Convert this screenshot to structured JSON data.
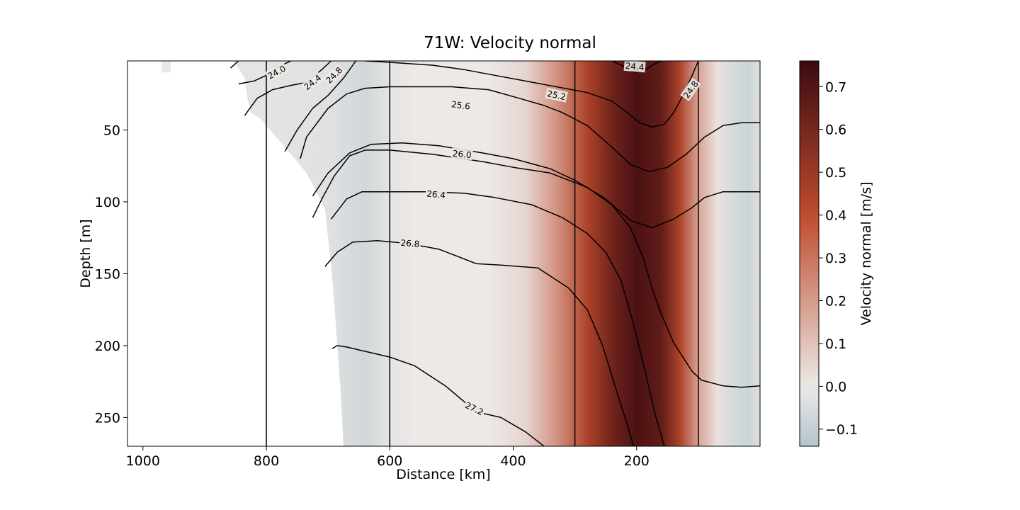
{
  "chart_data": {
    "type": "heatmap",
    "title": "71W: Velocity normal",
    "xlabel": "Distance [km]",
    "ylabel": "Depth [m]",
    "xlim": [
      1025,
      0
    ],
    "ylim": [
      2,
      270
    ],
    "x_inverted": true,
    "y_inverted": true,
    "x_ticks": [
      1000,
      800,
      600,
      400,
      200
    ],
    "y_ticks": [
      50,
      100,
      150,
      200,
      250
    ],
    "x_tick_labels": [
      "1000",
      "800",
      "600",
      "400",
      "200"
    ],
    "y_tick_labels": [
      "50",
      "100",
      "150",
      "200",
      "250"
    ],
    "grid": false,
    "colorbar": {
      "label": "Velocity normal [m/s]",
      "range": [
        -0.14,
        0.76
      ],
      "ticks": [
        -0.1,
        0.0,
        0.1,
        0.2,
        0.3,
        0.4,
        0.5,
        0.6,
        0.7
      ],
      "tick_labels": [
        "−0.1",
        "0.0",
        "0.1",
        "0.2",
        "0.3",
        "0.4",
        "0.5",
        "0.6",
        "0.7"
      ],
      "colors": {
        "negative": "#b3c5cc",
        "zero": "#ece9e7",
        "mid": "#bf4c2e",
        "max": "#3d0a10"
      }
    },
    "vertical_lines_km": [
      800,
      600,
      300,
      100
    ],
    "velocity_field": [
      {
        "km": 1025,
        "v": 0.0
      },
      {
        "km": 700,
        "v": -0.03
      },
      {
        "km": 640,
        "v": -0.07
      },
      {
        "km": 600,
        "v": -0.02
      },
      {
        "km": 560,
        "v": 0.0
      },
      {
        "km": 440,
        "v": 0.0
      },
      {
        "km": 380,
        "v": 0.05
      },
      {
        "km": 330,
        "v": 0.22
      },
      {
        "km": 280,
        "v": 0.45
      },
      {
        "km": 240,
        "v": 0.62
      },
      {
        "km": 200,
        "v": 0.72
      },
      {
        "km": 160,
        "v": 0.66
      },
      {
        "km": 130,
        "v": 0.45
      },
      {
        "km": 100,
        "v": 0.18
      },
      {
        "km": 70,
        "v": 0.02
      },
      {
        "km": 40,
        "v": -0.06
      },
      {
        "km": 20,
        "v": -0.08
      },
      {
        "km": 0,
        "v": -0.04
      }
    ],
    "contours": [
      {
        "label": "24.0",
        "points": [
          [
            858,
            7
          ],
          [
            845,
            2
          ]
        ]
      },
      {
        "label": "24.0",
        "points": [
          [
            845,
            18
          ],
          [
            820,
            16
          ],
          [
            800,
            12
          ],
          [
            780,
            6
          ],
          [
            760,
            2
          ]
        ]
      },
      {
        "label": "24.4",
        "points": [
          [
            835,
            40
          ],
          [
            815,
            28
          ],
          [
            790,
            22
          ],
          [
            760,
            19
          ],
          [
            735,
            17
          ],
          [
            710,
            8
          ],
          [
            695,
            2
          ]
        ]
      },
      {
        "label": "24.8",
        "points": [
          [
            770,
            65
          ],
          [
            750,
            50
          ],
          [
            725,
            35
          ],
          [
            700,
            26
          ],
          [
            675,
            14
          ],
          [
            655,
            2
          ]
        ]
      },
      {
        "label": "24.4",
        "points": [
          [
            240,
            2
          ],
          [
            220,
            6
          ],
          [
            210,
            9
          ],
          [
            200,
            10
          ],
          [
            185,
            8
          ],
          [
            175,
            5
          ],
          [
            160,
            2
          ]
        ]
      },
      {
        "label": "24.8",
        "points": [
          [
            100,
            2
          ],
          [
            110,
            12
          ],
          [
            125,
            26
          ],
          [
            140,
            38
          ],
          [
            155,
            46
          ],
          [
            175,
            48
          ],
          [
            195,
            45
          ],
          [
            215,
            38
          ],
          [
            240,
            30
          ],
          [
            280,
            24
          ],
          [
            330,
            20
          ],
          [
            380,
            16
          ],
          [
            430,
            12
          ],
          [
            480,
            8
          ],
          [
            530,
            5
          ],
          [
            600,
            3
          ],
          [
            640,
            2
          ]
        ]
      },
      {
        "label": "25.2",
        "points": [
          [
            0,
            45
          ],
          [
            30,
            45
          ],
          [
            60,
            47
          ],
          [
            90,
            55
          ],
          [
            120,
            67
          ],
          [
            150,
            76
          ],
          [
            180,
            79
          ],
          [
            210,
            74
          ],
          [
            240,
            62
          ],
          [
            280,
            47
          ],
          [
            320,
            38
          ],
          [
            350,
            33
          ],
          [
            390,
            28
          ],
          [
            440,
            22
          ],
          [
            500,
            20
          ],
          [
            560,
            20
          ],
          [
            600,
            20
          ],
          [
            640,
            21
          ],
          [
            670,
            25
          ],
          [
            700,
            35
          ],
          [
            735,
            55
          ],
          [
            745,
            70
          ]
        ]
      },
      {
        "label": "25.6",
        "points": [
          [
            0,
            93
          ],
          [
            30,
            93
          ],
          [
            60,
            93
          ],
          [
            90,
            97
          ],
          [
            110,
            104
          ],
          [
            140,
            112
          ],
          [
            175,
            118
          ],
          [
            210,
            113
          ],
          [
            250,
            98
          ],
          [
            300,
            85
          ],
          [
            340,
            77
          ],
          [
            400,
            70
          ],
          [
            450,
            66
          ],
          [
            520,
            61
          ],
          [
            580,
            59
          ],
          [
            630,
            60
          ],
          [
            665,
            66
          ],
          [
            700,
            80
          ],
          [
            725,
            96
          ]
        ]
      },
      {
        "label": "26.0",
        "points": [
          [
            0,
            228
          ],
          [
            30,
            229
          ],
          [
            60,
            228
          ],
          [
            95,
            224
          ],
          [
            110,
            218
          ],
          [
            140,
            198
          ],
          [
            160,
            178
          ],
          [
            175,
            160
          ],
          [
            190,
            138
          ],
          [
            210,
            118
          ],
          [
            240,
            102
          ],
          [
            280,
            90
          ],
          [
            340,
            80
          ],
          [
            400,
            76
          ],
          [
            450,
            72
          ],
          [
            530,
            67
          ],
          [
            600,
            64
          ],
          [
            640,
            64
          ],
          [
            665,
            68
          ],
          [
            690,
            82
          ],
          [
            710,
            98
          ],
          [
            725,
            111
          ]
        ]
      },
      {
        "label": "26.4",
        "points": [
          [
            155,
            270
          ],
          [
            170,
            248
          ],
          [
            185,
            220
          ],
          [
            205,
            185
          ],
          [
            225,
            155
          ],
          [
            250,
            135
          ],
          [
            280,
            122
          ],
          [
            320,
            111
          ],
          [
            370,
            102
          ],
          [
            430,
            97
          ],
          [
            480,
            94
          ],
          [
            540,
            93
          ],
          [
            600,
            93
          ],
          [
            645,
            93
          ],
          [
            670,
            98
          ],
          [
            695,
            112
          ]
        ]
      },
      {
        "label": "26.8",
        "points": [
          [
            205,
            270
          ],
          [
            215,
            255
          ],
          [
            230,
            235
          ],
          [
            255,
            200
          ],
          [
            280,
            175
          ],
          [
            310,
            160
          ],
          [
            360,
            146
          ],
          [
            420,
            144
          ],
          [
            460,
            143
          ],
          [
            520,
            133
          ],
          [
            570,
            129
          ],
          [
            620,
            127
          ],
          [
            660,
            128
          ],
          [
            685,
            135
          ],
          [
            705,
            145
          ]
        ]
      },
      {
        "label": "27.2",
        "points": [
          [
            350,
            270
          ],
          [
            380,
            260
          ],
          [
            420,
            250
          ],
          [
            460,
            246
          ],
          [
            510,
            228
          ],
          [
            560,
            214
          ],
          [
            600,
            208
          ],
          [
            640,
            204
          ],
          [
            670,
            201
          ],
          [
            685,
            200
          ],
          [
            693,
            202
          ]
        ]
      }
    ],
    "contour_label_positions": [
      {
        "label": "24.0",
        "km": 783,
        "depth": 10,
        "angle": -28
      },
      {
        "label": "24.4",
        "km": 725,
        "depth": 17,
        "angle": -38
      },
      {
        "label": "24.8",
        "km": 690,
        "depth": 12,
        "angle": -45
      },
      {
        "label": "24.4",
        "km": 203,
        "depth": 6,
        "angle": 5
      },
      {
        "label": "24.8",
        "km": 112,
        "depth": 22,
        "angle": -55
      },
      {
        "label": "25.2",
        "km": 330,
        "depth": 26,
        "angle": 12
      },
      {
        "label": "25.6",
        "km": 485,
        "depth": 33,
        "angle": 8
      },
      {
        "label": "26.0",
        "km": 483,
        "depth": 67,
        "angle": 6
      },
      {
        "label": "26.4",
        "km": 525,
        "depth": 95,
        "angle": 6
      },
      {
        "label": "26.8",
        "km": 567,
        "depth": 129,
        "angle": 4
      },
      {
        "label": "27.2",
        "km": 463,
        "depth": 244,
        "angle": 26
      }
    ],
    "land_mask": [
      [
        1025,
        2
      ],
      [
        970,
        2
      ],
      [
        970,
        10
      ],
      [
        955,
        10
      ],
      [
        955,
        2
      ],
      [
        855,
        2
      ],
      [
        848,
        5
      ],
      [
        835,
        14
      ],
      [
        830,
        30
      ],
      [
        825,
        38
      ],
      [
        810,
        42
      ],
      [
        790,
        52
      ],
      [
        770,
        62
      ],
      [
        750,
        72
      ],
      [
        735,
        80
      ],
      [
        720,
        92
      ],
      [
        705,
        105
      ],
      [
        700,
        125
      ],
      [
        695,
        145
      ],
      [
        690,
        170
      ],
      [
        685,
        200
      ],
      [
        680,
        230
      ],
      [
        675,
        270
      ],
      [
        1025,
        270
      ]
    ]
  }
}
